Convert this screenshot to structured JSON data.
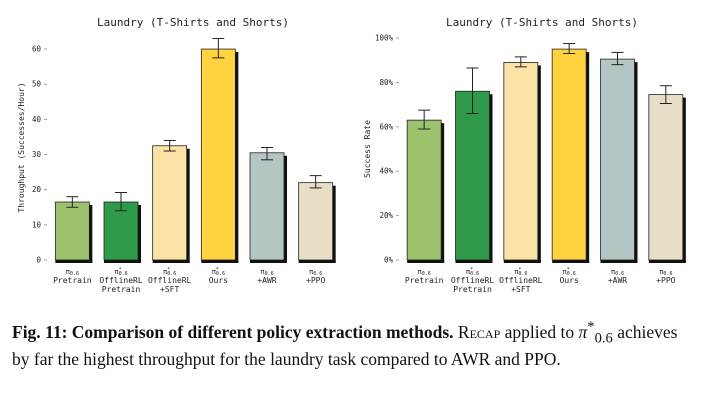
{
  "chart_data": [
    {
      "type": "bar",
      "title": "Laundry (T-Shirts and Shorts)",
      "ylabel": "Throughput (Successes/Hour)",
      "ylim": [
        0,
        64
      ],
      "yticks": [
        0,
        10,
        20,
        30,
        40,
        50,
        60
      ],
      "grid": false,
      "categories": [
        {
          "sym": "π0.6",
          "star": false,
          "lines": [
            "Pretrain"
          ]
        },
        {
          "sym": "π0.6",
          "star": true,
          "lines": [
            "OfflineRL",
            "Pretrain"
          ]
        },
        {
          "sym": "π0.6",
          "star": true,
          "lines": [
            "OfflineRL",
            "+SFT"
          ]
        },
        {
          "sym": "π0.6",
          "star": true,
          "lines": [
            "Ours"
          ]
        },
        {
          "sym": "π0.6",
          "star": false,
          "lines": [
            "+AWR"
          ]
        },
        {
          "sym": "π0.6",
          "star": false,
          "lines": [
            "+PPO"
          ]
        }
      ],
      "values": [
        16.5,
        16.5,
        32.5,
        60.0,
        30.5,
        22.0
      ],
      "errors": [
        [
          15.0,
          18.0
        ],
        [
          14.0,
          19.2
        ],
        [
          31.0,
          34.0
        ],
        [
          57.5,
          63.0
        ],
        [
          28.5,
          32.0
        ],
        [
          20.5,
          24.0
        ]
      ],
      "colors": [
        "#9bc26d",
        "#2f9a4a",
        "#fae3a4",
        "#ffd33f",
        "#b3c6c4",
        "#e8dec5"
      ]
    },
    {
      "type": "bar",
      "title": "Laundry (T-Shirts and Shorts)",
      "ylabel": "Success Rate",
      "ylim": [
        0,
        100
      ],
      "yticks": [
        0,
        20,
        40,
        60,
        80,
        100
      ],
      "ytick_labels": [
        "0%",
        "20%",
        "40%",
        "60%",
        "80%",
        "100%"
      ],
      "grid": false,
      "categories": [
        {
          "sym": "π0.6",
          "star": false,
          "lines": [
            "Pretrain"
          ]
        },
        {
          "sym": "π0.6",
          "star": true,
          "lines": [
            "OfflineRL",
            "Pretrain"
          ]
        },
        {
          "sym": "π0.6",
          "star": true,
          "lines": [
            "OfflineRL",
            "+SFT"
          ]
        },
        {
          "sym": "π0.6",
          "star": true,
          "lines": [
            "Ours"
          ]
        },
        {
          "sym": "π0.6",
          "star": false,
          "lines": [
            "+AWR"
          ]
        },
        {
          "sym": "π0.6",
          "star": false,
          "lines": [
            "+PPO"
          ]
        }
      ],
      "values": [
        63.0,
        76.0,
        89.0,
        95.0,
        90.5,
        74.5
      ],
      "errors": [
        [
          59.0,
          67.5
        ],
        [
          66.0,
          86.5
        ],
        [
          87.0,
          91.5
        ],
        [
          93.0,
          97.5
        ],
        [
          88.0,
          93.5
        ],
        [
          70.5,
          78.5
        ]
      ],
      "colors": [
        "#9bc26d",
        "#2f9a4a",
        "#fae3a4",
        "#ffd33f",
        "#b3c6c4",
        "#e8dec5"
      ]
    }
  ],
  "caption": {
    "label": "Fig. 11:",
    "bold": "Comparison of different policy extraction methods.",
    "recap": "Recap",
    "mid": "applied to",
    "pi": "π",
    "star": "*",
    "sub": "0.6",
    "rest": "achieves by far the highest throughput for the laundry task compared to AWR and PPO."
  }
}
